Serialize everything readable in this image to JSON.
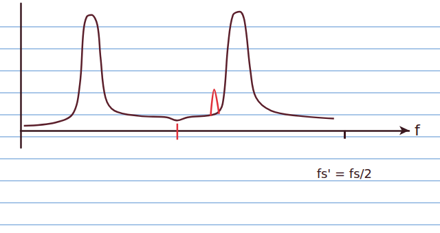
{
  "chart_data": {
    "type": "line",
    "xlabel": "f",
    "xlim": [
      0,
      1.2
    ],
    "xticks": [
      {
        "value": 1,
        "label": "fs' = fs/2"
      }
    ],
    "ylim": [
      -0.15,
      1.1
    ],
    "grid": false,
    "tick_labels": "x",
    "series": [
      {
        "color": "#5b1f2b",
        "x": [
          0.01,
          0.108,
          0.161,
          0.183,
          0.194,
          0.204,
          0.219,
          0.237,
          0.247,
          0.262,
          0.29,
          0.366,
          0.452,
          0.484,
          0.516,
          0.602,
          0.624,
          0.641,
          0.656,
          0.677,
          0.692,
          0.71,
          0.727,
          0.774,
          0.86,
          0.968
        ],
        "values": [
          0.04,
          0.069,
          0.143,
          0.4,
          0.857,
          0.983,
          1.0,
          0.914,
          0.629,
          0.286,
          0.171,
          0.126,
          0.114,
          0.086,
          0.114,
          0.143,
          0.229,
          0.743,
          1.0,
          1.029,
          0.943,
          0.514,
          0.286,
          0.171,
          0.126,
          0.103
        ]
      },
      {
        "color": "#e0303a",
        "x": [
          0.587,
          0.598,
          0.613
        ],
        "values": [
          0.126,
          0.354,
          0.143
        ]
      },
      {
        "color": "#e0303a",
        "x": [
          0.484,
          0.484
        ],
        "values": [
          -0.08,
          0.06
        ]
      }
    ]
  }
}
